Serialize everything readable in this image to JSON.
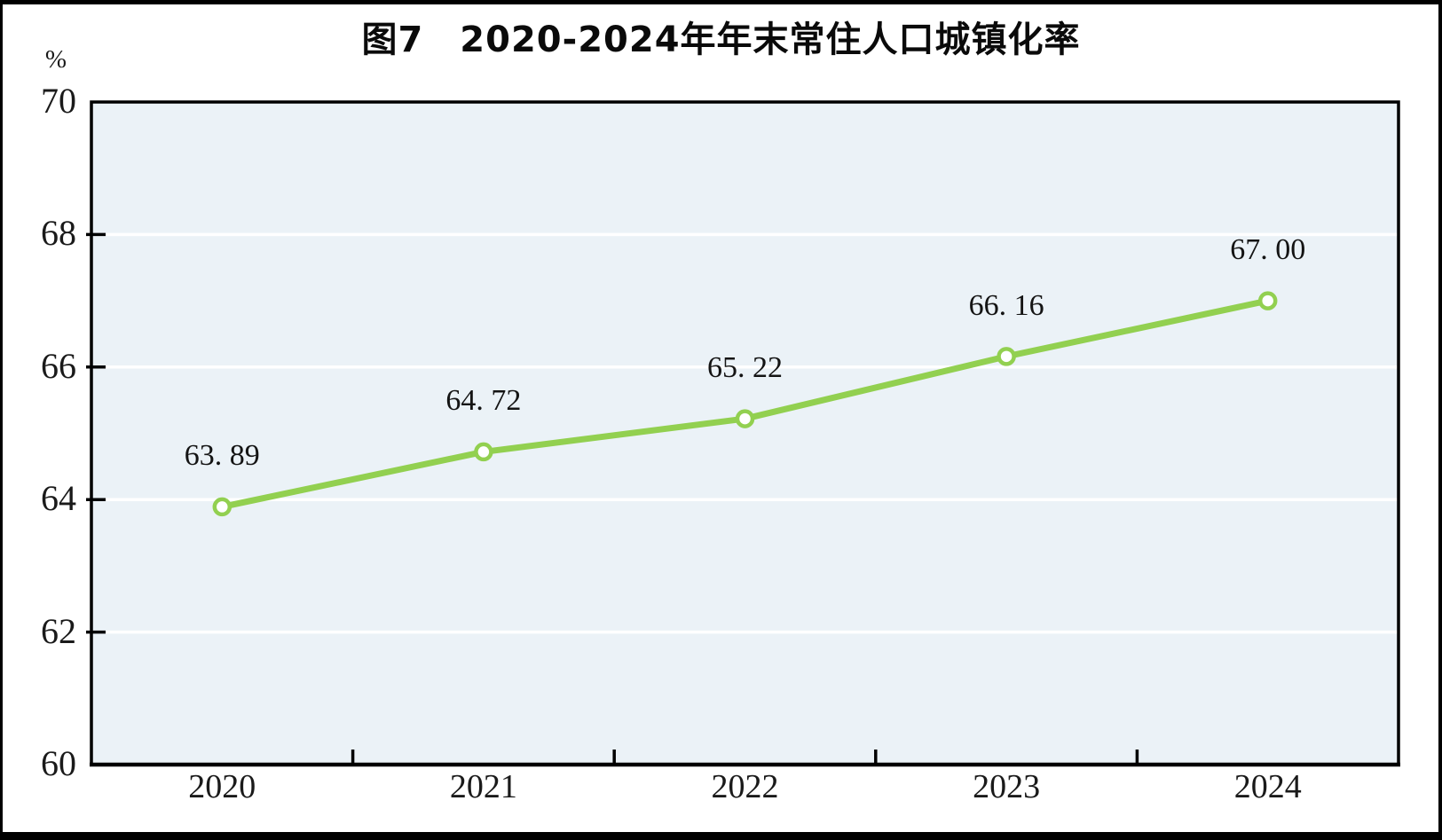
{
  "chart_data": {
    "type": "line",
    "title": "图7　2020-2024年年末常住人口城镇化率",
    "y_unit": "%",
    "categories": [
      "2020",
      "2021",
      "2022",
      "2023",
      "2024"
    ],
    "values": [
      63.89,
      64.72,
      65.22,
      66.16,
      67.0
    ],
    "point_labels": [
      "63. 89",
      "64. 72",
      "65. 22",
      "66. 16",
      "67. 00"
    ],
    "ylim": [
      60,
      70
    ],
    "y_ticks": [
      60,
      62,
      64,
      66,
      68,
      70
    ],
    "xlabel": "",
    "ylabel": "%",
    "legend": "none",
    "grid": "horizontal-white-gridlines",
    "colors": {
      "line": "#92d050",
      "marker_fill": "#ffffff",
      "plot_background": "#ebf2f7",
      "gridline": "#ffffff",
      "axis": "#000000",
      "text": "#1a1a1a",
      "title_text": "#0a0a0a",
      "page_background": "#ffffff",
      "outer_border": "#000000"
    }
  }
}
